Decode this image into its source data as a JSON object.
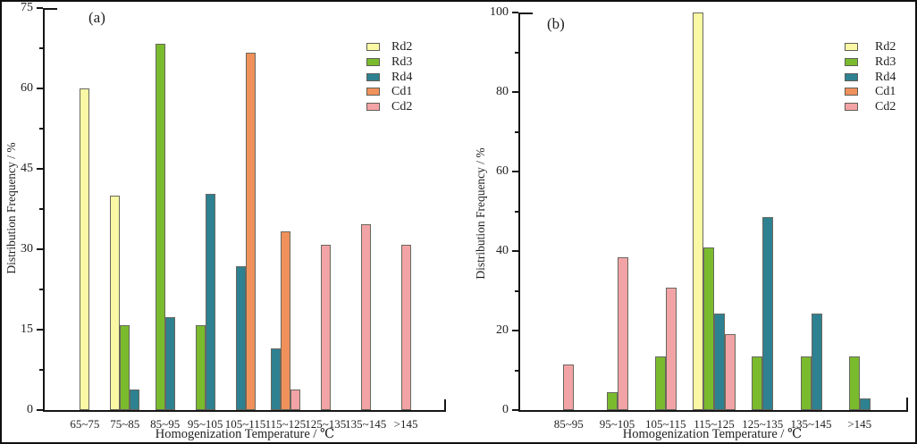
{
  "chart_data": [
    {
      "type": "bar",
      "panel_label": "(a)",
      "xlabel": "Homogenization Temperature / ℃",
      "ylabel": "Distribution Frequency / %",
      "ylim": [
        0,
        75
      ],
      "y_ticks_major": [
        0,
        15,
        30,
        45,
        60,
        75
      ],
      "y_ticks_minor": [
        7.5,
        22.5,
        37.5,
        52.5,
        67.5
      ],
      "grid": false,
      "legend_position": "upper right",
      "categories": [
        "65~75",
        "75~85",
        "85~95",
        "95~105",
        "105~115",
        "115~125",
        "125~135",
        "135~145",
        ">145"
      ],
      "series": [
        {
          "name": "Rd2",
          "color": "#faf8a4",
          "values": [
            60,
            40,
            null,
            null,
            null,
            null,
            null,
            null,
            null
          ]
        },
        {
          "name": "Rd3",
          "color": "#7abb2e",
          "values": [
            null,
            15.8,
            68.4,
            15.8,
            null,
            null,
            null,
            null,
            null
          ]
        },
        {
          "name": "Rd4",
          "color": "#2e8191",
          "values": [
            null,
            3.8,
            17.3,
            40.4,
            26.9,
            11.5,
            null,
            null,
            null
          ]
        },
        {
          "name": "Cd1",
          "color": "#f0915c",
          "values": [
            null,
            null,
            null,
            null,
            66.7,
            33.3,
            null,
            null,
            null
          ]
        },
        {
          "name": "Cd2",
          "color": "#f2a3a6",
          "values": [
            null,
            null,
            null,
            null,
            null,
            3.8,
            30.8,
            34.6,
            30.8
          ]
        }
      ]
    },
    {
      "type": "bar",
      "panel_label": "(b)",
      "xlabel": "Homogenization Temperature / ℃",
      "ylabel": "Distribution Frequency / %",
      "ylim": [
        0,
        100
      ],
      "y_ticks_major": [
        0,
        20,
        40,
        60,
        80,
        100
      ],
      "y_ticks_minor": [
        10,
        30,
        50,
        70,
        90
      ],
      "grid": false,
      "legend_position": "upper right",
      "categories": [
        "85~95",
        "95~105",
        "105~115",
        "115~125",
        "125~135",
        "135~145",
        ">145"
      ],
      "series": [
        {
          "name": "Rd2",
          "color": "#faf8a4",
          "values": [
            null,
            null,
            null,
            100,
            null,
            null,
            null
          ]
        },
        {
          "name": "Rd3",
          "color": "#7abb2e",
          "values": [
            null,
            4.5,
            13.6,
            40.9,
            13.6,
            13.6,
            13.6
          ]
        },
        {
          "name": "Rd4",
          "color": "#2e8191",
          "values": [
            null,
            null,
            null,
            24.2,
            48.5,
            24.2,
            3
          ]
        },
        {
          "name": "Cd1",
          "color": "#f0915c",
          "values": [
            null,
            null,
            null,
            null,
            null,
            null,
            null
          ]
        },
        {
          "name": "Cd2",
          "color": "#f2a3a6",
          "values": [
            11.5,
            38.5,
            30.8,
            19.2,
            null,
            null,
            null
          ]
        }
      ]
    }
  ]
}
